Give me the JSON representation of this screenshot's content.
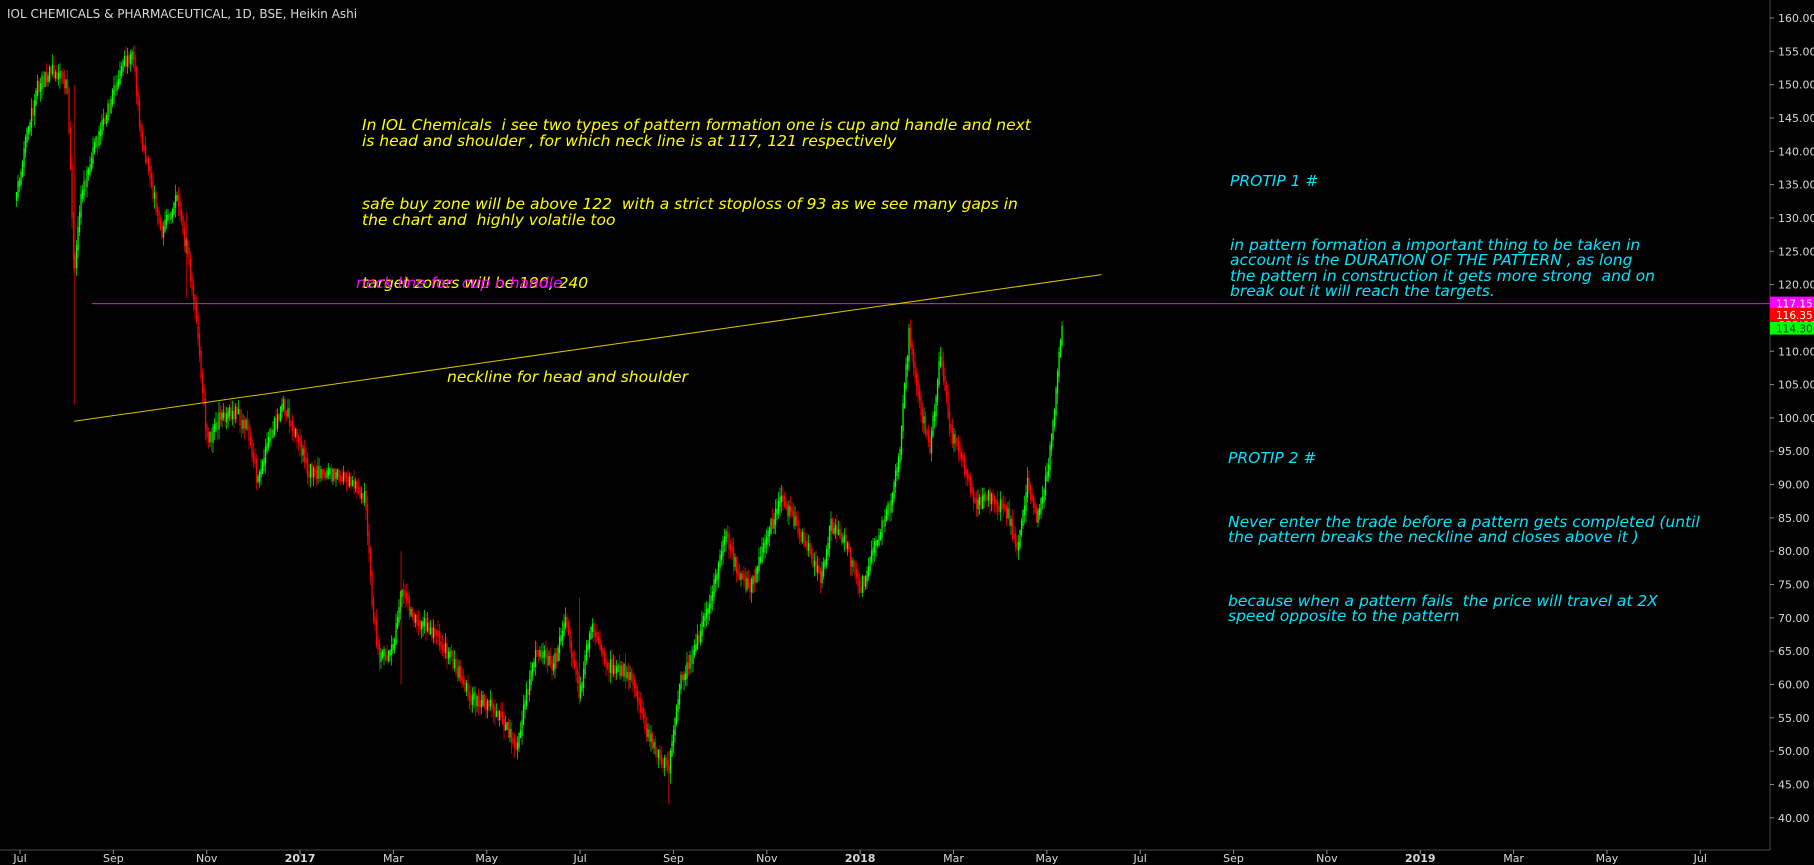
{
  "header": {
    "title": "IOL CHEMICALS & PHARMACEUTICAL, 1D, BSE, Heikin Ashi"
  },
  "annotations": {
    "analysis": [
      "In IOL Chemicals  i see two types of pattern formation one is cup and handle and next\nis head and shoulder , for which neck line is at 117, 121 respectively",
      "safe buy zone will be above 122  with a strict stoploss of 93 as we see many gaps in\nthe chart and  highly volatile too",
      "target zones will be 190, 240"
    ],
    "protip1": [
      "PROTIP 1 #",
      "in pattern formation a important thing to be taken in\naccount is the DURATION OF THE PATTERN , as long\nthe pattern in construction it gets more strong  and on\nbreak out it will reach the targets."
    ],
    "protip2": [
      "PROTIP 2 #",
      "Never enter the trade before a pattern gets completed (until\nthe pattern breaks the neckline and closes above it )",
      "because when a pattern fails  the price will travel at 2X\nspeed opposite to the pattern"
    ],
    "neck_cup": "neck line for  cup n handle",
    "neck_hs": "neckline for head and shoulder"
  },
  "colors": {
    "background": "#000000",
    "up": "#00ff00",
    "down": "#ff0000",
    "cup_neckline": "#ff00ff",
    "hs_neckline": "#d8c400",
    "analysis_text": "#ffff00",
    "protip_text": "#00e5ff",
    "axis_text": "#d9d9d9"
  },
  "chart_data": {
    "type": "candlestick",
    "style": "Heikin Ashi",
    "ylim": [
      37,
      162
    ],
    "y_ticks": [
      "160.00",
      "155.00",
      "150.00",
      "145.00",
      "140.00",
      "135.00",
      "130.00",
      "125.00",
      "120.00",
      "115.00",
      "110.00",
      "105.00",
      "100.00",
      "95.00",
      "90.00",
      "85.00",
      "80.00",
      "75.00",
      "70.00",
      "65.00",
      "60.00",
      "55.00",
      "50.00",
      "45.00",
      "40.00"
    ],
    "x_ticks": [
      "Jul",
      "Sep",
      "Nov",
      "2017",
      "Mar",
      "May",
      "Jul",
      "Sep",
      "Nov",
      "2018",
      "Mar",
      "May",
      "Jul",
      "Sep",
      "Nov",
      "2019",
      "Mar",
      "May",
      "Jul"
    ],
    "price_labels": [
      {
        "value": "117.15",
        "price": 117.15,
        "color": "#ff00ff"
      },
      {
        "value": "116.35",
        "price": 116.35,
        "color": "#ff0000"
      },
      {
        "value": "114.30",
        "price": 114.3,
        "color": "#00ff00"
      }
    ],
    "horizontal_line": {
      "price": 117.15
    },
    "trendline": {
      "from_date": "2016-08-10",
      "from_price": 99.5,
      "to_date": "2018-08-28",
      "to_price": 121.5
    },
    "price_path": [
      {
        "date": "2016-06-29",
        "price": 133
      },
      {
        "date": "2016-07-06",
        "price": 142
      },
      {
        "date": "2016-07-15",
        "price": 150
      },
      {
        "date": "2016-07-25",
        "price": 152
      },
      {
        "date": "2016-08-05",
        "price": 150
      },
      {
        "date": "2016-08-10",
        "price": 122
      },
      {
        "date": "2016-08-15",
        "price": 133
      },
      {
        "date": "2016-08-24",
        "price": 140
      },
      {
        "date": "2016-09-05",
        "price": 147
      },
      {
        "date": "2016-09-15",
        "price": 153
      },
      {
        "date": "2016-09-22",
        "price": 155
      },
      {
        "date": "2016-09-27",
        "price": 143
      },
      {
        "date": "2016-10-05",
        "price": 135
      },
      {
        "date": "2016-10-13",
        "price": 128
      },
      {
        "date": "2016-10-24",
        "price": 133
      },
      {
        "date": "2016-10-31",
        "price": 125
      },
      {
        "date": "2016-11-07",
        "price": 115
      },
      {
        "date": "2016-11-15",
        "price": 96
      },
      {
        "date": "2016-11-24",
        "price": 100
      },
      {
        "date": "2016-12-05",
        "price": 101
      },
      {
        "date": "2016-12-15",
        "price": 98
      },
      {
        "date": "2016-12-22",
        "price": 90
      },
      {
        "date": "2016-12-30",
        "price": 97
      },
      {
        "date": "2017-01-09",
        "price": 102
      },
      {
        "date": "2017-01-18",
        "price": 98
      },
      {
        "date": "2017-01-27",
        "price": 92
      },
      {
        "date": "2017-02-10",
        "price": 92
      },
      {
        "date": "2017-03-01",
        "price": 90
      },
      {
        "date": "2017-03-10",
        "price": 88
      },
      {
        "date": "2017-03-15",
        "price": 72
      },
      {
        "date": "2017-03-20",
        "price": 64
      },
      {
        "date": "2017-03-30",
        "price": 65
      },
      {
        "date": "2017-04-05",
        "price": 74
      },
      {
        "date": "2017-04-15",
        "price": 70
      },
      {
        "date": "2017-04-28",
        "price": 68
      },
      {
        "date": "2017-05-12",
        "price": 64
      },
      {
        "date": "2017-05-25",
        "price": 58
      },
      {
        "date": "2017-06-10",
        "price": 57
      },
      {
        "date": "2017-06-20",
        "price": 54
      },
      {
        "date": "2017-06-28",
        "price": 50
      },
      {
        "date": "2017-07-05",
        "price": 58
      },
      {
        "date": "2017-07-12",
        "price": 65
      },
      {
        "date": "2017-07-25",
        "price": 63
      },
      {
        "date": "2017-08-03",
        "price": 70
      },
      {
        "date": "2017-08-13",
        "price": 58
      },
      {
        "date": "2017-08-21",
        "price": 69
      },
      {
        "date": "2017-09-01",
        "price": 63
      },
      {
        "date": "2017-09-14",
        "price": 62
      },
      {
        "date": "2017-09-22",
        "price": 60
      },
      {
        "date": "2017-10-01",
        "price": 53
      },
      {
        "date": "2017-10-10",
        "price": 49
      },
      {
        "date": "2017-10-17",
        "price": 47
      },
      {
        "date": "2017-10-25",
        "price": 60
      },
      {
        "date": "2017-11-06",
        "price": 66
      },
      {
        "date": "2017-11-16",
        "price": 72
      },
      {
        "date": "2017-11-27",
        "price": 83
      },
      {
        "date": "2017-12-04",
        "price": 78
      },
      {
        "date": "2017-12-15",
        "price": 74
      },
      {
        "date": "2017-12-27",
        "price": 82
      },
      {
        "date": "2018-01-07",
        "price": 88
      },
      {
        "date": "2018-01-20",
        "price": 83
      },
      {
        "date": "2018-02-05",
        "price": 76
      },
      {
        "date": "2018-02-12",
        "price": 84
      },
      {
        "date": "2018-02-23",
        "price": 81
      },
      {
        "date": "2018-03-05",
        "price": 74
      },
      {
        "date": "2018-03-15",
        "price": 80
      },
      {
        "date": "2018-03-27",
        "price": 87
      },
      {
        "date": "2018-04-03",
        "price": 95
      },
      {
        "date": "2018-04-10",
        "price": 113
      },
      {
        "date": "2018-04-16",
        "price": 104
      },
      {
        "date": "2018-04-25",
        "price": 95
      },
      {
        "date": "2018-05-03",
        "price": 110
      },
      {
        "date": "2018-05-10",
        "price": 98
      },
      {
        "date": "2018-05-18",
        "price": 94
      },
      {
        "date": "2018-05-28",
        "price": 87
      },
      {
        "date": "2018-06-08",
        "price": 88
      },
      {
        "date": "2018-06-20",
        "price": 86
      },
      {
        "date": "2018-06-28",
        "price": 80
      },
      {
        "date": "2018-07-05",
        "price": 90
      },
      {
        "date": "2018-07-12",
        "price": 85
      },
      {
        "date": "2018-07-20",
        "price": 92
      },
      {
        "date": "2018-07-26",
        "price": 104
      },
      {
        "date": "2018-07-31",
        "price": 116
      }
    ]
  }
}
